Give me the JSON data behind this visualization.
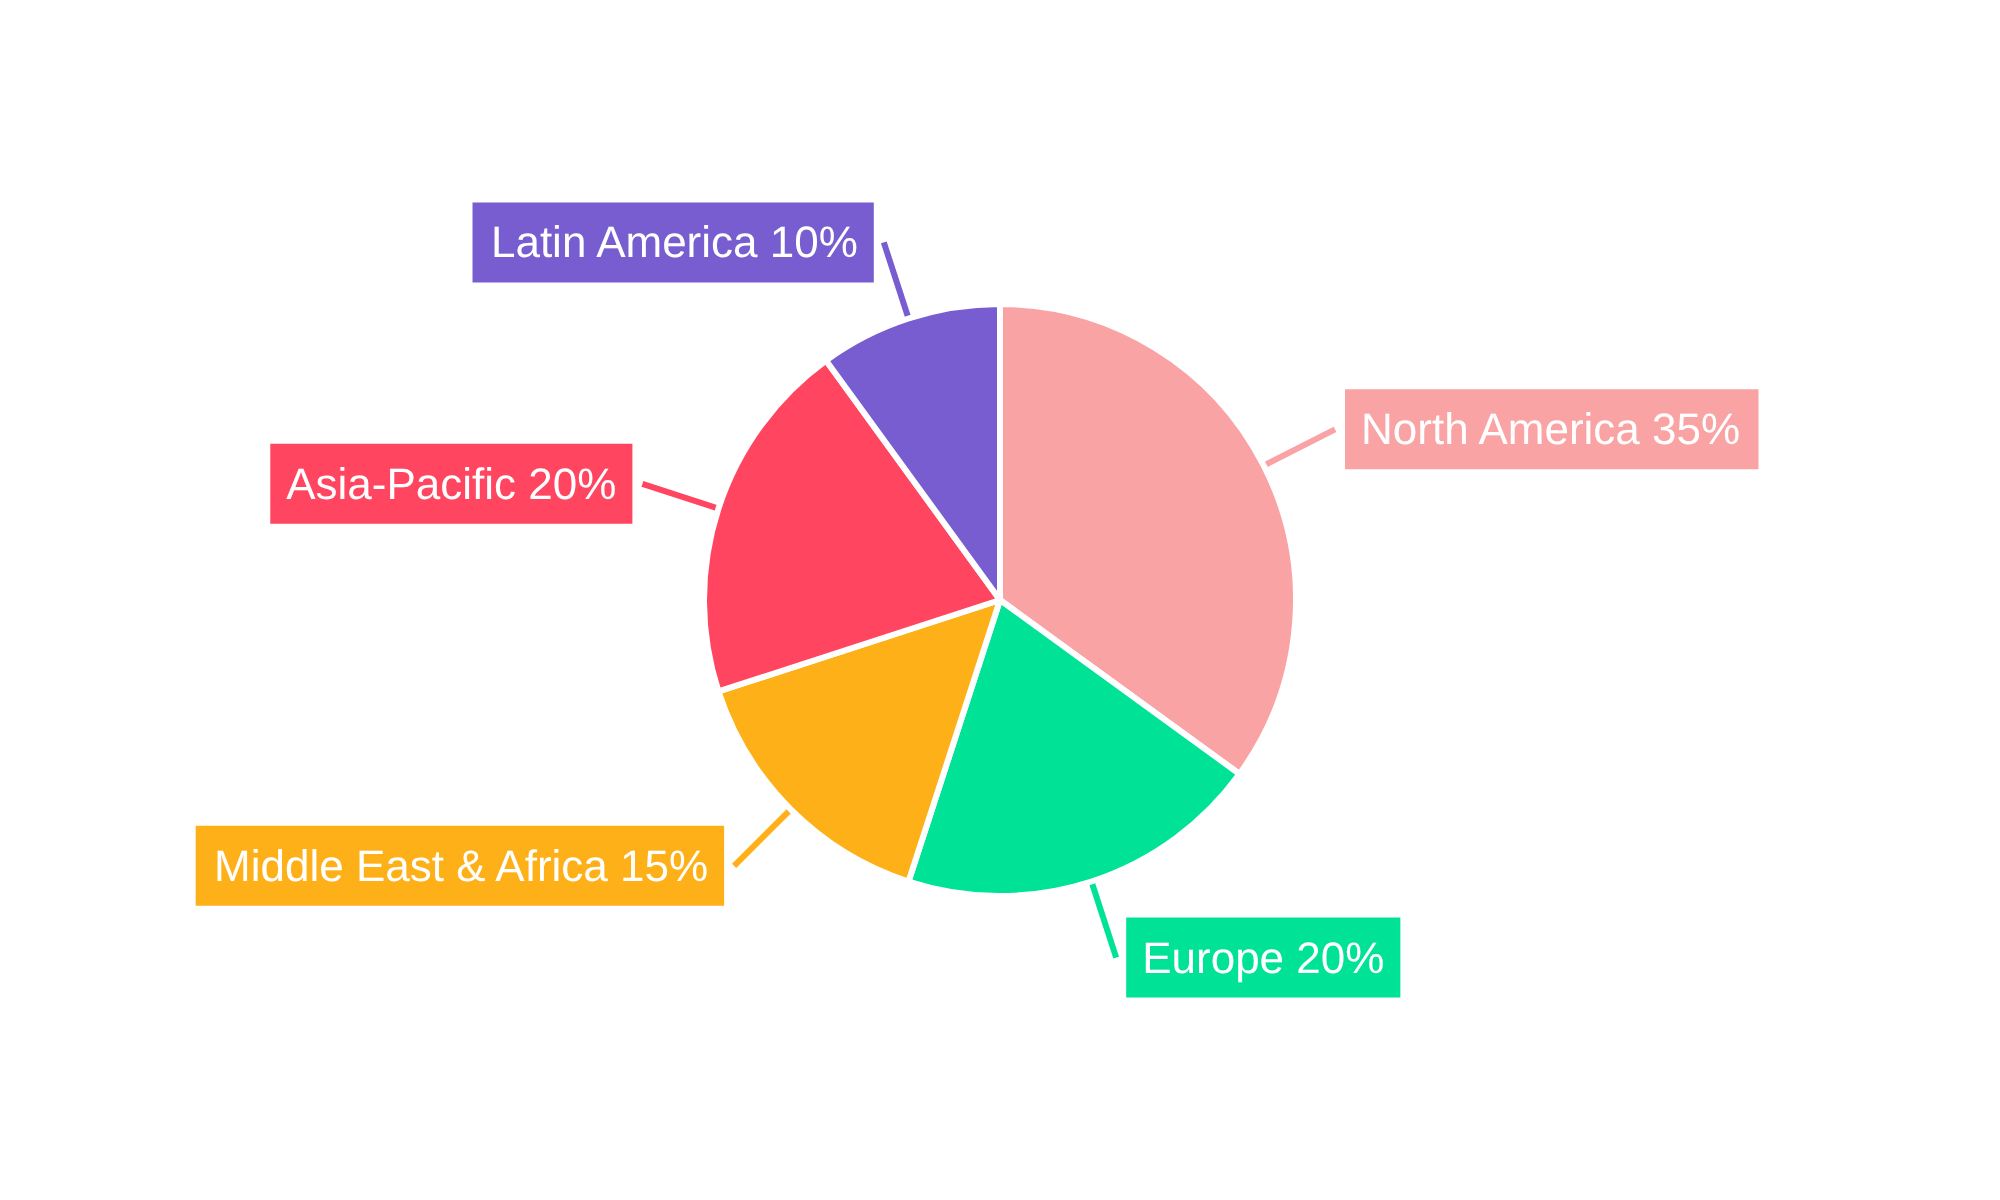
{
  "chart_data": {
    "type": "pie",
    "categories": [
      "North America",
      "Europe",
      "Middle East & Africa",
      "Asia-Pacific",
      "Latin America"
    ],
    "values": [
      35,
      20,
      15,
      20,
      10
    ],
    "value_labels": [
      "35%",
      "20%",
      "15%",
      "20%",
      "10%"
    ],
    "colors": [
      "#f9a3a4",
      "#00e396",
      "#feb019",
      "#ff4560",
      "#775dd0"
    ],
    "legend": false
  }
}
